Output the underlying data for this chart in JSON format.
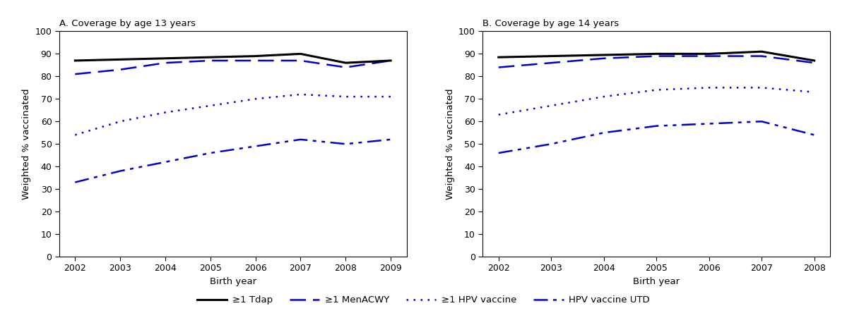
{
  "panel_A": {
    "title": "A. Coverage by age 13 years",
    "x": [
      2002,
      2003,
      2004,
      2005,
      2006,
      2007,
      2008,
      2009
    ],
    "tdap": [
      87,
      87.5,
      88,
      88.5,
      89,
      90,
      86,
      87
    ],
    "menacwy": [
      81,
      83,
      86,
      87,
      87,
      87,
      84,
      87
    ],
    "hpv1": [
      54,
      60,
      64,
      67,
      70,
      72,
      71,
      71
    ],
    "hpv_utd": [
      33,
      38,
      42,
      46,
      49,
      52,
      50,
      52
    ]
  },
  "panel_B": {
    "title": "B. Coverage by age 14 years",
    "x": [
      2002,
      2003,
      2004,
      2005,
      2006,
      2007,
      2008
    ],
    "tdap": [
      88.5,
      89,
      89.5,
      90,
      90,
      91,
      87
    ],
    "menacwy": [
      84,
      86,
      88,
      89,
      89,
      89,
      86
    ],
    "hpv1": [
      63,
      67,
      71,
      74,
      75,
      75,
      73
    ],
    "hpv_utd": [
      46,
      50,
      55,
      58,
      59,
      60,
      54
    ]
  },
  "ylabel": "Weighted % vaccinated",
  "xlabel": "Birth year",
  "ylim": [
    0,
    100
  ],
  "yticks": [
    0,
    10,
    20,
    30,
    40,
    50,
    60,
    70,
    80,
    90,
    100
  ],
  "color_black": "#000000",
  "color_blue": "#0000CC",
  "legend_labels": [
    "≥1 Tdap",
    "≥1 MenACWY",
    "≥1 HPV vaccine",
    "HPV vaccine UTD"
  ]
}
